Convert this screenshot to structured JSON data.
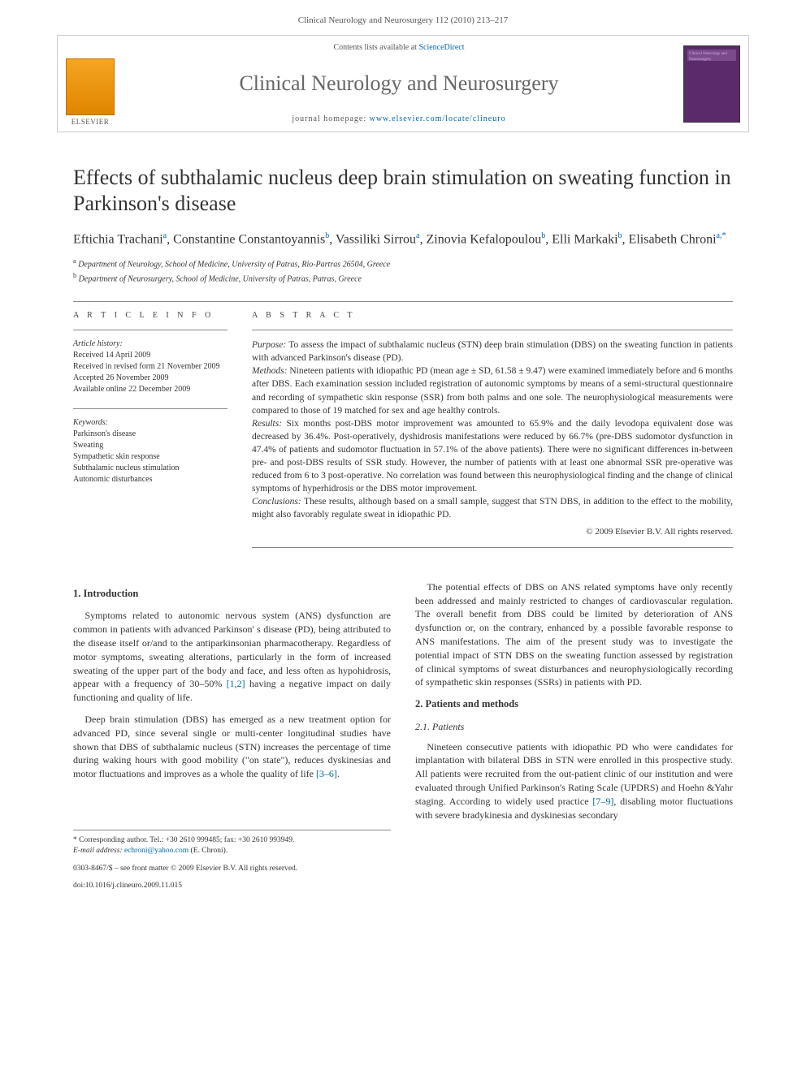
{
  "header": {
    "running_head": "Clinical Neurology and Neurosurgery 112 (2010) 213–217"
  },
  "banner": {
    "contents_prefix": "Contents lists available at ",
    "contents_link": "ScienceDirect",
    "journal_name": "Clinical Neurology and Neurosurgery",
    "homepage_prefix": "journal homepage: ",
    "homepage_url": "www.elsevier.com/locate/clineuro",
    "publisher_label": "ELSEVIER",
    "cover_text": "Clinical Neurology and Neurosurgery"
  },
  "article": {
    "title": "Effects of subthalamic nucleus deep brain stimulation on sweating function in Parkinson's disease",
    "authors_html": "Eftichia Trachani<sup>a</sup>, Constantine Constantoyannis<sup>b</sup>, Vassiliki Sirrou<sup>a</sup>, Zinovia Kefalopoulou<sup>b</sup>, Elli Markaki<sup>b</sup>, Elisabeth Chroni<sup>a,*</sup>",
    "affiliations": {
      "a": "Department of Neurology, School of Medicine, University of Patras, Rio-Partras 26504, Greece",
      "b": "Department of Neurosurgery, School of Medicine, University of Patras, Patras, Greece"
    }
  },
  "meta": {
    "info_heading": "A R T I C L E   I N F O",
    "abstract_heading": "A B S T R A C T",
    "history_label": "Article history:",
    "history": {
      "received": "Received 14 April 2009",
      "revised": "Received in revised form 21 November 2009",
      "accepted": "Accepted 26 November 2009",
      "online": "Available online 22 December 2009"
    },
    "keywords_label": "Keywords:",
    "keywords": [
      "Parkinson's disease",
      "Sweating",
      "Sympathetic skin response",
      "Subthalamic nucleus stimulation",
      "Autonomic disturbances"
    ]
  },
  "abstract": {
    "purpose_label": "Purpose:",
    "purpose": "To assess the impact of subthalamic nucleus (STN) deep brain stimulation (DBS) on the sweating function in patients with advanced Parkinson's disease (PD).",
    "methods_label": "Methods:",
    "methods": "Nineteen patients with idiopathic PD (mean age ± SD, 61.58 ± 9.47) were examined immediately before and 6 months after DBS. Each examination session included registration of autonomic symptoms by means of a semi-structural questionnaire and recording of sympathetic skin response (SSR) from both palms and one sole. The neurophysiological measurements were compared to those of 19 matched for sex and age healthy controls.",
    "results_label": "Results:",
    "results": "Six months post-DBS motor improvement was amounted to 65.9% and the daily levodopa equivalent dose was decreased by 36.4%. Post-operatively, dyshidrosis manifestations were reduced by 66.7% (pre-DBS sudomotor dysfunction in 47.4% of patients and sudomotor fluctuation in 57.1% of the above patients). There were no significant differences in-between pre- and post-DBS results of SSR study. However, the number of patients with at least one abnormal SSR pre-operative was reduced from 6 to 3 post-operative. No correlation was found between this neurophysiological finding and the change of clinical symptoms of hyperhidrosis or the DBS motor improvement.",
    "conclusions_label": "Conclusions:",
    "conclusions": "These results, although based on a small sample, suggest that STN DBS, in addition to the effect to the mobility, might also favorably regulate sweat in idiopathic PD.",
    "copyright": "© 2009 Elsevier B.V. All rights reserved."
  },
  "body": {
    "intro_heading": "1. Introduction",
    "intro_p1": "Symptoms related to autonomic nervous system (ANS) dysfunction are common in patients with advanced Parkinson' s disease (PD), being attributed to the disease itself or/and to the antiparkinsonian pharmacotherapy. Regardless of motor symptoms, sweating alterations, particularly in the form of increased sweating of the upper part of the body and face, and less often as hypohidrosis, appear with a frequency of 30–50% ",
    "intro_cite1": "[1,2]",
    "intro_p1b": " having a negative impact on daily functioning and quality of life.",
    "intro_p2": "Deep brain stimulation (DBS) has emerged as a new treatment option for advanced PD, since several single or multi-center longitudinal studies have shown that DBS of subthalamic nucleus (STN) increases the percentage of time during waking hours with good mobility (\"on state\"), reduces dyskinesias and motor fluctuations and improves as a whole the quality of life ",
    "intro_cite2": "[3–6]",
    "intro_p2b": ".",
    "intro_p3": "The potential effects of DBS on ANS related symptoms have only recently been addressed and mainly restricted to changes of cardiovascular regulation. The overall benefit from DBS could be limited by deterioration of ANS dysfunction or, on the contrary, enhanced by a possible favorable response to ANS manifestations. The aim of the present study was to investigate the potential impact of STN DBS on the sweating function assessed by registration of clinical symptoms of sweat disturbances and neurophysiologically recording of sympathetic skin responses (SSRs) in patients with PD.",
    "methods_heading": "2. Patients and methods",
    "patients_heading": "2.1. Patients",
    "patients_p1a": "Nineteen consecutive patients with idiopathic PD who were candidates for implantation with bilateral DBS in STN were enrolled in this prospective study. All patients were recruited from the out-patient clinic of our institution and were evaluated through Unified Parkinson's Rating Scale (UPDRS) and Hoehn &Yahr staging. According to widely used practice ",
    "patients_cite1": "[7–9]",
    "patients_p1b": ", disabling motor fluctuations with severe bradykinesia and dyskinesias secondary"
  },
  "footer": {
    "corr_label": "* Corresponding author. Tel.: +30 2610 999485; fax: +30 2610 993949.",
    "email_label": "E-mail address:",
    "email": "echroni@yahoo.com",
    "email_who": "(E. Chroni).",
    "issn_line": "0303-8467/$ – see front matter © 2009 Elsevier B.V. All rights reserved.",
    "doi": "doi:10.1016/j.clineuro.2009.11.015"
  },
  "colors": {
    "link": "#0066aa",
    "text": "#333333",
    "rule": "#888888",
    "elsevier_orange": "#e08500",
    "cover_purple": "#5a2a6a"
  }
}
